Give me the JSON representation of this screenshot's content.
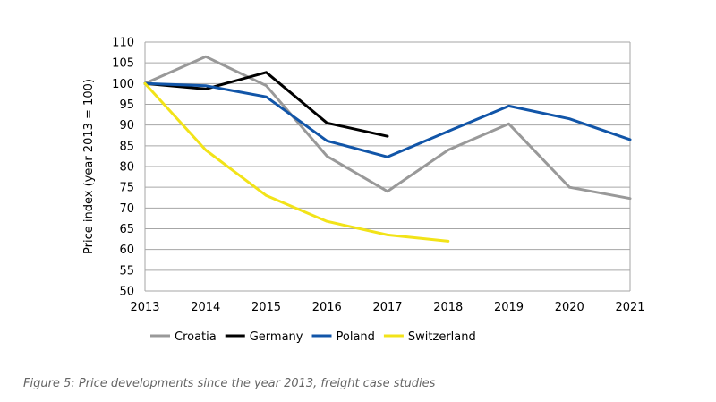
{
  "chart_data": {
    "type": "line",
    "title": "",
    "xlabel": "",
    "ylabel": "Price index (year 2013 = 100)",
    "xlim": [
      2013,
      2021
    ],
    "ylim": [
      50,
      110
    ],
    "yticks": [
      50,
      55,
      60,
      65,
      70,
      75,
      80,
      85,
      90,
      95,
      100,
      105,
      110
    ],
    "xticks": [
      2013,
      2014,
      2015,
      2016,
      2017,
      2018,
      2019,
      2020,
      2021
    ],
    "grid": "horizontal",
    "legend_position": "bottom",
    "series": [
      {
        "name": "Croatia",
        "color": "#999999",
        "x": [
          2013,
          2014,
          2015,
          2016,
          2017,
          2018,
          2019,
          2020,
          2021
        ],
        "y": [
          100,
          106.5,
          99.5,
          82.5,
          74,
          84,
          90.3,
          75,
          72.3
        ]
      },
      {
        "name": "Germany",
        "color": "#000000",
        "x": [
          2013,
          2014,
          2015,
          2016,
          2017
        ],
        "y": [
          100,
          98.7,
          102.7,
          90.5,
          87.3
        ]
      },
      {
        "name": "Poland",
        "color": "#1155a8",
        "x": [
          2013,
          2014,
          2015,
          2016,
          2017,
          2018,
          2019,
          2020,
          2021
        ],
        "y": [
          100,
          99.5,
          96.8,
          86.2,
          82.3,
          88.5,
          94.6,
          91.5,
          86.5
        ]
      },
      {
        "name": "Switzerland",
        "color": "#f2e318",
        "x": [
          2013,
          2014,
          2015,
          2016,
          2017,
          2018
        ],
        "y": [
          100,
          84,
          73,
          66.8,
          63.5,
          62
        ]
      }
    ]
  },
  "caption": "Figure 5: Price developments since the year 2013, freight case studies"
}
